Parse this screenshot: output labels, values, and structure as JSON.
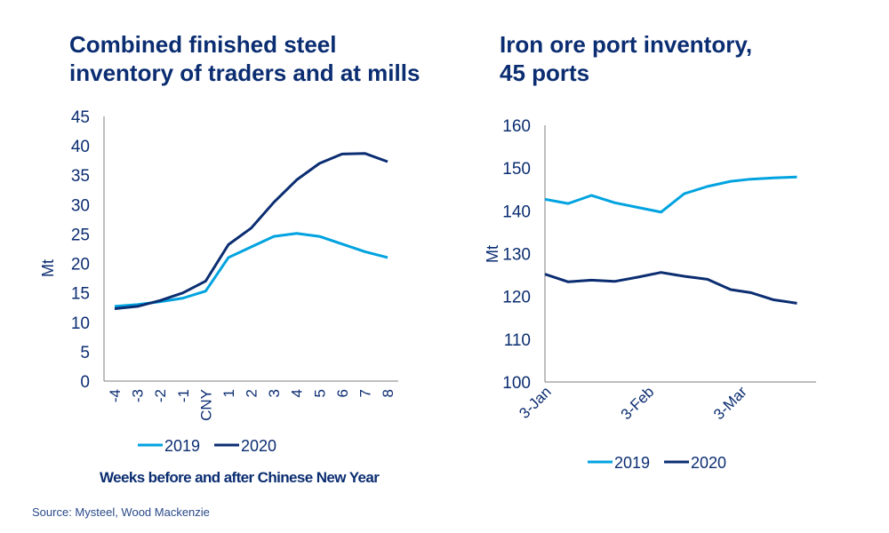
{
  "source": "Source: Mysteel, Wood Mackenzie",
  "colors": {
    "2019": "#00a3e0",
    "2020": "#0b2d71",
    "text": "#0b2d71",
    "axis": "#7f7f7f"
  },
  "chart_data": [
    {
      "type": "line",
      "title": "Combined finished steel inventory of traders and at mills",
      "title_lines": [
        "Combined finished steel",
        "inventory of traders and at mills"
      ],
      "xlabel": "Weeks before and after Chinese New Year",
      "ylabel": "Mt",
      "ylim": [
        0,
        45
      ],
      "yticks": [
        0,
        5,
        10,
        15,
        20,
        25,
        30,
        35,
        40,
        45
      ],
      "categories": [
        "-4",
        "-3",
        "-2",
        "-1",
        "CNY",
        "1",
        "2",
        "3",
        "4",
        "5",
        "6",
        "7",
        "8"
      ],
      "grid": false,
      "legend": "bottom",
      "series": [
        {
          "name": "2019",
          "values": [
            12.7,
            13.0,
            13.5,
            14.1,
            15.3,
            21.0,
            22.8,
            24.6,
            25.1,
            24.6,
            23.3,
            22.0,
            21.0
          ]
        },
        {
          "name": "2020",
          "values": [
            12.3,
            12.7,
            13.7,
            15.0,
            17.0,
            23.2,
            26.0,
            30.4,
            34.2,
            37.0,
            38.6,
            38.7,
            37.3
          ]
        }
      ]
    },
    {
      "type": "line",
      "title": "Iron ore port inventory, 45 ports",
      "title_lines": [
        "Iron ore port inventory,",
        "45 ports"
      ],
      "xlabel": "",
      "ylabel": "Mt",
      "ylim": [
        100,
        160
      ],
      "yticks": [
        100,
        110,
        120,
        130,
        140,
        150,
        160
      ],
      "xtick_labels": [
        "3-Jan",
        "3-Feb",
        "3-Mar"
      ],
      "x": [
        "3-Jan",
        "10-Jan",
        "17-Jan",
        "24-Jan",
        "31-Jan",
        "7-Feb",
        "14-Feb",
        "21-Feb",
        "28-Feb",
        "6-Mar",
        "13-Mar",
        "20-Mar"
      ],
      "grid": false,
      "legend": "bottom",
      "series": [
        {
          "name": "2019",
          "values": [
            142.7,
            141.7,
            143.6,
            141.9,
            140.8,
            139.7,
            144.0,
            145.7,
            146.9,
            147.4,
            147.7,
            147.9
          ]
        },
        {
          "name": "2020",
          "values": [
            125.2,
            123.4,
            123.8,
            123.5,
            124.5,
            125.6,
            124.7,
            124.0,
            121.6,
            120.9,
            119.2,
            118.4
          ]
        }
      ]
    }
  ]
}
